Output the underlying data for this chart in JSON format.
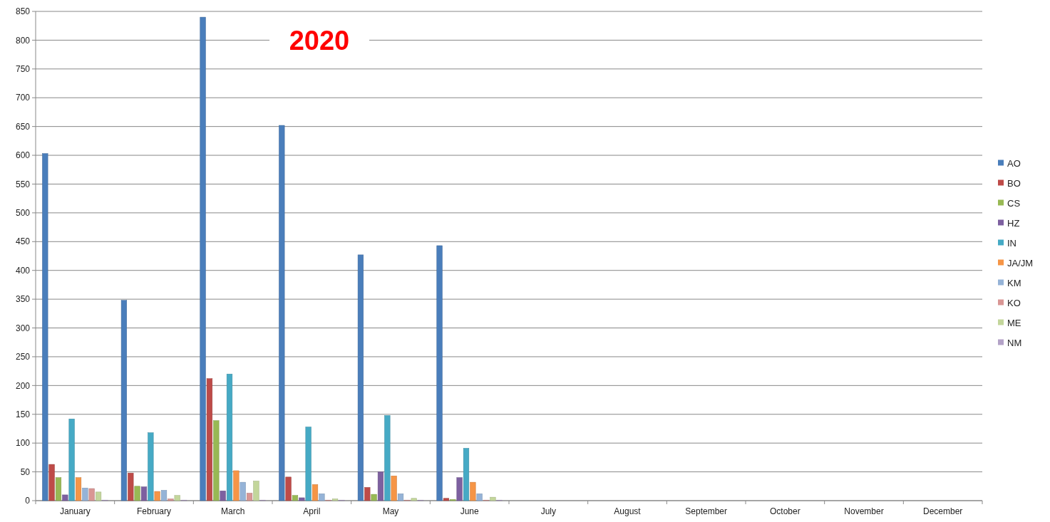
{
  "chart_data": {
    "type": "bar",
    "title": "2020",
    "categories": [
      "January",
      "February",
      "March",
      "April",
      "May",
      "June",
      "July",
      "August",
      "September",
      "October",
      "November",
      "December"
    ],
    "series": [
      {
        "name": "AO",
        "color": "#4a7ebb",
        "values": [
          603,
          348,
          840,
          652,
          427,
          443,
          null,
          null,
          null,
          null,
          null,
          null
        ]
      },
      {
        "name": "BO",
        "color": "#be4b48",
        "values": [
          63,
          48,
          212,
          41,
          23,
          4,
          null,
          null,
          null,
          null,
          null,
          null
        ]
      },
      {
        "name": "CS",
        "color": "#98b954",
        "values": [
          40,
          25,
          139,
          9,
          11,
          2,
          null,
          null,
          null,
          null,
          null,
          null
        ]
      },
      {
        "name": "HZ",
        "color": "#7d60a0",
        "values": [
          10,
          24,
          17,
          5,
          50,
          40,
          null,
          null,
          null,
          null,
          null,
          null
        ]
      },
      {
        "name": "IN",
        "color": "#46aac5",
        "values": [
          142,
          118,
          220,
          128,
          148,
          91,
          null,
          null,
          null,
          null,
          null,
          null
        ]
      },
      {
        "name": "JA/JM",
        "color": "#f69546",
        "values": [
          40,
          16,
          52,
          28,
          43,
          32,
          null,
          null,
          null,
          null,
          null,
          null
        ]
      },
      {
        "name": "KM",
        "color": "#95b3d7",
        "values": [
          22,
          18,
          32,
          12,
          12,
          12,
          null,
          null,
          null,
          null,
          null,
          null
        ]
      },
      {
        "name": "KO",
        "color": "#d99694",
        "values": [
          21,
          3,
          13,
          1,
          1,
          1,
          null,
          null,
          null,
          null,
          null,
          null
        ]
      },
      {
        "name": "ME",
        "color": "#c3d69b",
        "values": [
          15,
          9,
          34,
          3,
          4,
          6,
          null,
          null,
          null,
          null,
          null,
          null
        ]
      },
      {
        "name": "NM",
        "color": "#b3a2c7",
        "values": [
          1,
          1,
          1,
          1,
          1,
          1,
          null,
          null,
          null,
          null,
          null,
          null
        ]
      }
    ],
    "ylim": [
      0,
      850
    ],
    "yticks": [
      0,
      50,
      100,
      150,
      200,
      250,
      300,
      350,
      400,
      450,
      500,
      550,
      600,
      650,
      700,
      750,
      800,
      850
    ],
    "grid": "y",
    "legend": "right"
  }
}
